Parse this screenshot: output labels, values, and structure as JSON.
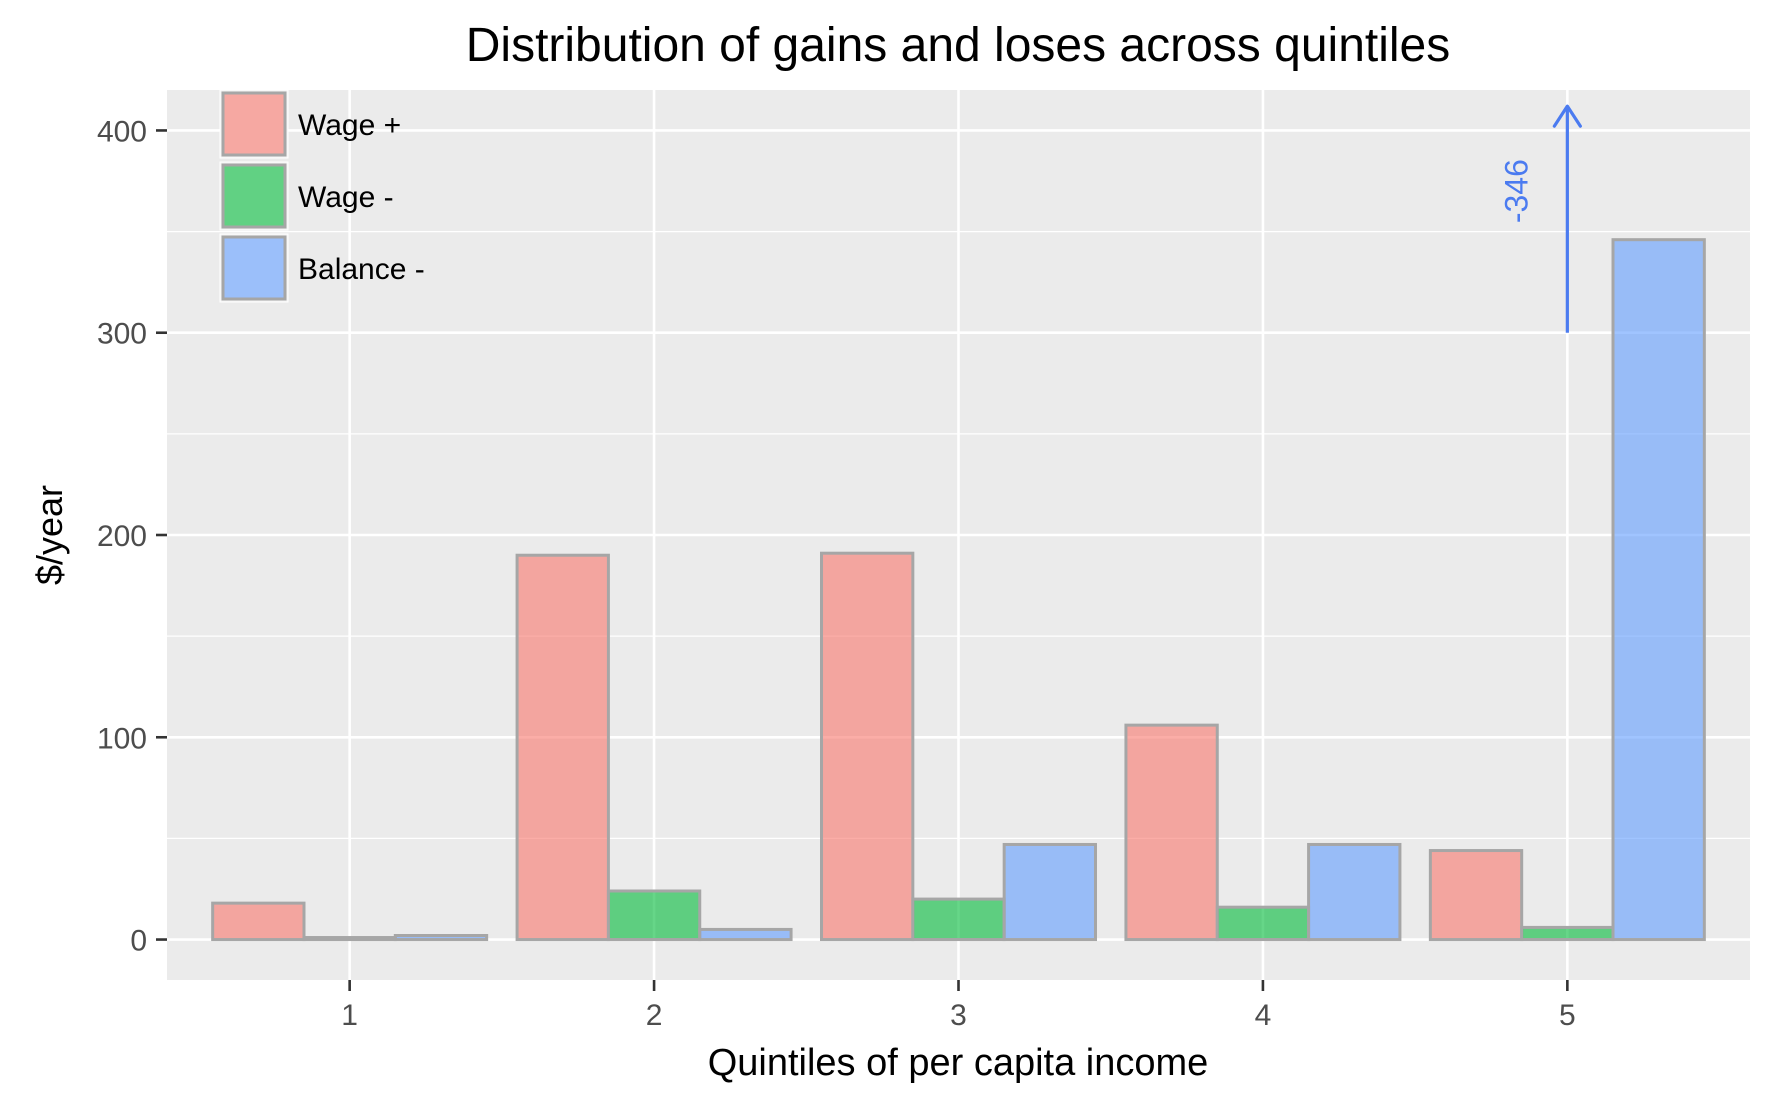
{
  "chart_data": {
    "type": "bar",
    "title": "Distribution of gains and loses across quintiles",
    "xlabel": "Quintiles of per capita income",
    "ylabel": "$/year",
    "categories": [
      "1",
      "2",
      "3",
      "4",
      "5"
    ],
    "series": [
      {
        "name": "Wage +",
        "color": "#F8766D",
        "values": [
          18,
          190,
          191,
          106,
          44
        ]
      },
      {
        "name": "Wage -",
        "color": "#00BA38",
        "values": [
          1,
          24,
          20,
          16,
          6
        ]
      },
      {
        "name": "Balance -",
        "color": "#619CFF",
        "values": [
          2,
          5,
          47,
          47,
          346
        ]
      }
    ],
    "ylim": [
      -20,
      420
    ],
    "yticks": [
      0,
      100,
      200,
      300,
      400
    ],
    "grid": true,
    "legend": "top-left",
    "annotation": {
      "text": "-346",
      "color": "#4B7BF0",
      "category": "5",
      "y_start": 300,
      "y_end": 412
    }
  }
}
